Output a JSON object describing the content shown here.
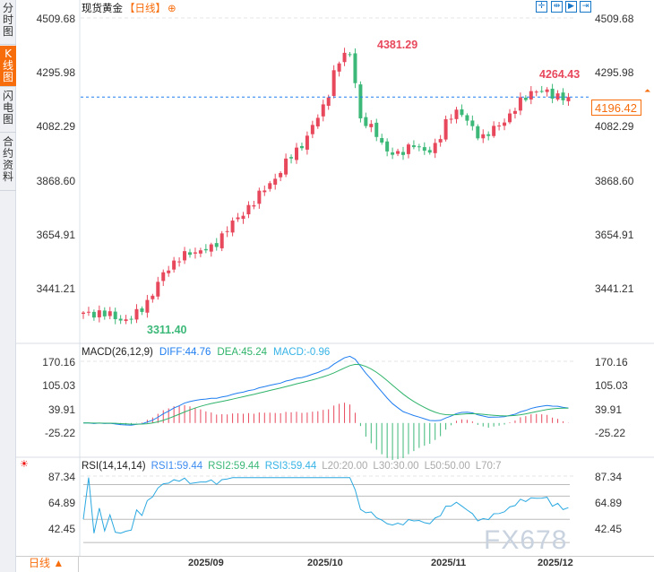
{
  "sidebar": {
    "tabs": [
      {
        "label": "分时图"
      },
      {
        "label": "K线图",
        "active": true
      },
      {
        "label": "闪电图"
      },
      {
        "label": "合约资料"
      }
    ]
  },
  "header": {
    "title": "现货黄金",
    "period": "【日线】",
    "add_icon": "circle-plus-icon"
  },
  "toolbar": [
    {
      "icon": "crosshair-icon"
    },
    {
      "icon": "fit-range-icon"
    },
    {
      "icon": "play-forward-icon"
    },
    {
      "icon": "jump-latest-icon"
    }
  ],
  "price_axis": {
    "ticks": [
      "4509.68",
      "4295.98",
      "4082.29",
      "3868.60",
      "3654.91",
      "3441.21"
    ],
    "current_price": "4196.42",
    "high_label": "4381.29",
    "recent_high_label": "4264.43",
    "low_label": "3311.40"
  },
  "macd": {
    "title": "MACD(26,12,9)",
    "diff": "DIFF:44.76",
    "dea": "DEA:45.24",
    "macd": "MACD:-0.96",
    "ticks": [
      "170.16",
      "105.03",
      "39.91",
      "-25.22"
    ]
  },
  "rsi": {
    "title": "RSI(14,14,14)",
    "rsi1": "RSI1:59.44",
    "rsi2": "RSI2:59.44",
    "rsi3": "RSI3:59.44",
    "l20": "L20:20.00",
    "l30": "L30:30.00",
    "l50": "L50:50.00",
    "l70": "L70:7",
    "ticks": [
      "87.34",
      "64.89",
      "42.45"
    ]
  },
  "dates": [
    "2025/09",
    "2025/10",
    "2025/11",
    "2025/12"
  ],
  "period_selector": "日线 ▲",
  "watermark": "FX678",
  "colors": {
    "up": "#e8485c",
    "down": "#3cb878",
    "accent": "#f76d0c",
    "diff": "#1e7df0",
    "dea": "#2fb36a",
    "rsi": "#2aa8e0"
  },
  "chart_data": {
    "type": "candlestick",
    "keypoint_closes": [
      3335,
      3340,
      3345,
      3330,
      3320,
      3315,
      3330,
      3370,
      3420,
      3480,
      3530,
      3560,
      3570,
      3585,
      3600,
      3590,
      3650,
      3700,
      3710,
      3760,
      3800,
      3830,
      3870,
      3920,
      3960,
      4000,
      4050,
      4110,
      4180,
      4300,
      4360,
      4370,
      4100,
      4080,
      4050,
      3980,
      3960,
      3990,
      4010,
      3980,
      3990,
      4020,
      4100,
      4150,
      4120,
      4060,
      4040,
      4060,
      4080,
      4120,
      4160,
      4190,
      4230,
      4220,
      4200,
      4205,
      4196.42
    ]
  }
}
